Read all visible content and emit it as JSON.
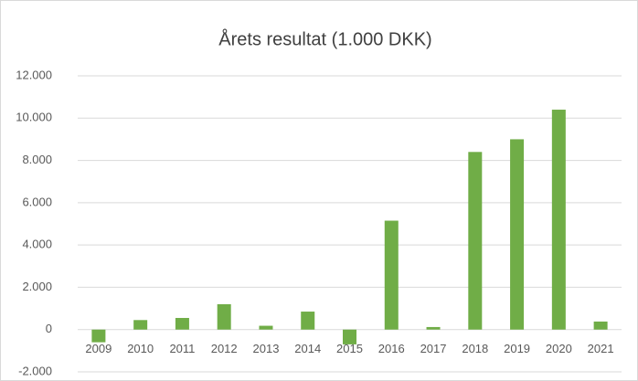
{
  "chart_data": {
    "type": "bar",
    "title": "Årets resultat (1.000 DKK)",
    "categories": [
      "2009",
      "2010",
      "2011",
      "2012",
      "2013",
      "2014",
      "2015",
      "2016",
      "2017",
      "2018",
      "2019",
      "2020",
      "2021"
    ],
    "values": [
      -600,
      450,
      550,
      1200,
      180,
      850,
      -700,
      5150,
      120,
      8400,
      9000,
      10400,
      380
    ],
    "color": "#70ad47",
    "ylim": [
      -2000,
      12000
    ],
    "yticks": [
      {
        "value": -2000,
        "label": "-2.000"
      },
      0,
      {
        "value": 2000,
        "label": "2.000"
      },
      {
        "value": 4000,
        "label": "4.000"
      },
      {
        "value": 6000,
        "label": "6.000"
      },
      {
        "value": 8000,
        "label": "8.000"
      },
      {
        "value": 10000,
        "label": "10.000"
      },
      {
        "value": 12000,
        "label": "12.000"
      }
    ],
    "grid": true
  }
}
